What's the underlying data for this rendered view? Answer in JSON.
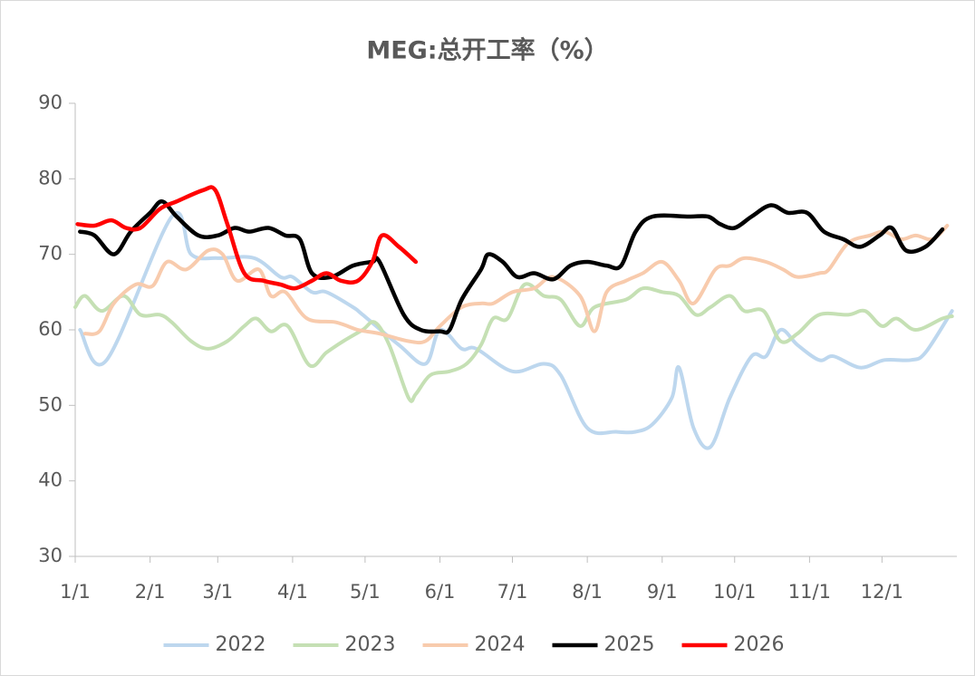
{
  "chart_data": {
    "type": "line",
    "title": "MEG:总开工率（%）",
    "xlim": [
      0,
      365
    ],
    "xticks": [
      {
        "value": 0,
        "label": "1/1"
      },
      {
        "value": 31,
        "label": "2/1"
      },
      {
        "value": 59,
        "label": "3/1"
      },
      {
        "value": 90,
        "label": "4/1"
      },
      {
        "value": 120,
        "label": "5/1"
      },
      {
        "value": 151,
        "label": "6/1"
      },
      {
        "value": 181,
        "label": "7/1"
      },
      {
        "value": 212,
        "label": "8/1"
      },
      {
        "value": 243,
        "label": "9/1"
      },
      {
        "value": 273,
        "label": "10/1"
      },
      {
        "value": 304,
        "label": "11/1"
      },
      {
        "value": 334,
        "label": "12/1"
      }
    ],
    "ylim": [
      30,
      90
    ],
    "yticks": [
      30,
      40,
      50,
      60,
      70,
      80,
      90
    ],
    "legend": "bottom",
    "series": [
      {
        "name": "2022",
        "color": "#bdd7ee",
        "width": 4,
        "x": [
          2,
          13,
          40,
          48,
          59,
          74,
          85,
          90,
          98,
          104,
          115,
          119,
          134,
          145,
          151,
          160,
          166,
          181,
          194,
          201,
          212,
          224,
          232,
          239,
          247,
          250,
          256,
          263,
          271,
          280,
          286,
          292,
          299,
          308,
          314,
          325,
          335,
          346,
          352,
          363
        ],
        "values": [
          60,
          56,
          75,
          70,
          69.5,
          69.5,
          67,
          67,
          65,
          65,
          63,
          62,
          58,
          55.5,
          60,
          57.5,
          57.5,
          54.5,
          55.5,
          54,
          47,
          46.5,
          46.5,
          47.5,
          51,
          55,
          47,
          44.5,
          51,
          56.5,
          56.5,
          60,
          58,
          56,
          56.5,
          55,
          56,
          56,
          57,
          62.5
        ]
      },
      {
        "name": "2023",
        "color": "#c5e0b4",
        "width": 4,
        "x": [
          0,
          4,
          11,
          20,
          27,
          35,
          40,
          48,
          55,
          63,
          70,
          75,
          81,
          88,
          97,
          104,
          111,
          119,
          124,
          130,
          138,
          141,
          147,
          155,
          162,
          168,
          173,
          179,
          186,
          194,
          201,
          209,
          215,
          228,
          235,
          243,
          250,
          257,
          263,
          271,
          277,
          285,
          292,
          299,
          308,
          320,
          327,
          334,
          340,
          348,
          359,
          363
        ],
        "values": [
          63,
          64.5,
          62.5,
          64.5,
          62,
          62,
          61,
          58.5,
          57.5,
          58.5,
          60.5,
          61.5,
          59.8,
          60.5,
          55.3,
          57,
          58.5,
          60,
          61,
          58,
          51,
          51.5,
          54,
          54.5,
          55.5,
          58,
          61.5,
          61.5,
          66,
          64.5,
          64,
          60.5,
          63,
          64,
          65.5,
          65,
          64.5,
          62,
          63,
          64.5,
          62.5,
          62.5,
          58.5,
          59.5,
          62,
          62,
          62.5,
          60.5,
          61.5,
          60,
          61.5,
          61.8
        ]
      },
      {
        "name": "2024",
        "color": "#f8cbad",
        "width": 4,
        "x": [
          4,
          10,
          16,
          25,
          32,
          38,
          46,
          55,
          61,
          67,
          76,
          81,
          87,
          96,
          108,
          117,
          126,
          138,
          145,
          151,
          160,
          168,
          173,
          181,
          190,
          198,
          209,
          215,
          220,
          228,
          235,
          243,
          250,
          256,
          265,
          271,
          277,
          286,
          293,
          299,
          308,
          312,
          320,
          329,
          335,
          342,
          348,
          355,
          361
        ],
        "values": [
          59.5,
          59.8,
          63.5,
          66,
          65.8,
          69,
          68,
          70.5,
          70,
          66.5,
          68,
          64.5,
          65,
          61.5,
          61,
          60,
          59.5,
          58.5,
          58.5,
          60.5,
          63,
          63.5,
          63.5,
          65,
          65.5,
          67,
          64.5,
          59.8,
          65,
          66.5,
          67.5,
          69,
          66.5,
          63.5,
          68,
          68.5,
          69.5,
          69,
          68,
          67,
          67.5,
          68,
          71.5,
          72.5,
          73,
          72,
          72.5,
          72,
          73.8
        ]
      },
      {
        "name": "2025",
        "color": "#000000",
        "width": 4.5,
        "x": [
          2,
          8,
          16,
          23,
          31,
          36,
          42,
          51,
          59,
          66,
          72,
          80,
          87,
          93,
          98,
          106,
          115,
          123,
          126,
          136,
          143,
          151,
          155,
          160,
          168,
          171,
          177,
          183,
          190,
          198,
          205,
          212,
          220,
          226,
          232,
          239,
          254,
          262,
          267,
          273,
          280,
          288,
          295,
          303,
          310,
          318,
          325,
          333,
          338,
          344,
          352,
          359
        ],
        "values": [
          73,
          72.5,
          70,
          73,
          75.5,
          77,
          75,
          72.5,
          72.5,
          73.5,
          73,
          73.5,
          72.5,
          72,
          67.5,
          67,
          68.5,
          69,
          69,
          62,
          60,
          59.8,
          60,
          64,
          68,
          70,
          69,
          67,
          67.5,
          66.7,
          68.5,
          69,
          68.5,
          68.5,
          73,
          75,
          75,
          75,
          74,
          73.5,
          75,
          76.5,
          75.5,
          75.5,
          73,
          72,
          71,
          72.5,
          73.5,
          70.5,
          71,
          73.3
        ]
      },
      {
        "name": "2026",
        "color": "#ff0000",
        "width": 4.5,
        "x": [
          1,
          8,
          15,
          21,
          27,
          35,
          42,
          53,
          58,
          63,
          70,
          78,
          85,
          91,
          98,
          104,
          110,
          117,
          123,
          127,
          134,
          141
        ],
        "values": [
          74,
          73.8,
          74.5,
          73.5,
          73.5,
          76,
          77,
          78.5,
          78.5,
          74,
          67.5,
          66.5,
          66,
          65.5,
          66.5,
          67.5,
          66.5,
          66.5,
          69,
          72.5,
          71,
          69
        ]
      }
    ]
  }
}
